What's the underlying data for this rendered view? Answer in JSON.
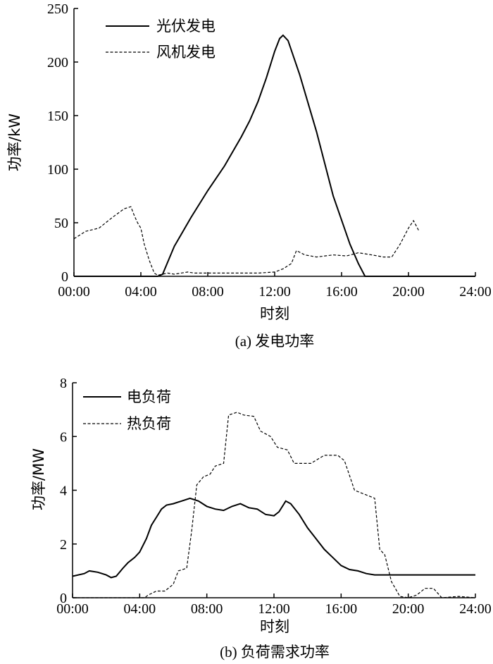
{
  "chart_data": [
    {
      "type": "line",
      "caption": "(a) 发电功率",
      "xlabel": "时刻",
      "ylabel": "功率/kW",
      "xlim": [
        0,
        24
      ],
      "ylim": [
        0,
        250
      ],
      "xticks": [
        "00:00",
        "04:00",
        "08:00",
        "12:00",
        "16:00",
        "20:00",
        "24:00"
      ],
      "yticks": [
        "0",
        "50",
        "100",
        "150",
        "200",
        "250"
      ],
      "legend_position": "top-left",
      "series": [
        {
          "name": "光伏发电",
          "style": "solid",
          "x": [
            0,
            5.0,
            5.3,
            6.0,
            7.0,
            8.0,
            9.0,
            10.0,
            10.5,
            11.0,
            11.5,
            12.0,
            12.3,
            12.5,
            12.8,
            13.5,
            14.5,
            15.5,
            16.5,
            17.0,
            17.4,
            24.0
          ],
          "y": [
            0,
            0,
            2,
            28,
            55,
            80,
            103,
            130,
            145,
            163,
            185,
            210,
            222,
            225,
            220,
            188,
            135,
            75,
            30,
            12,
            0,
            0
          ]
        },
        {
          "name": "风机发电",
          "style": "dashed",
          "x": [
            0,
            0.7,
            1.5,
            2.3,
            3.0,
            3.4,
            3.6,
            3.8,
            4.0,
            4.2,
            4.5,
            4.8,
            5.0,
            5.3,
            5.6,
            6.0,
            6.8,
            7.2,
            8.0,
            9.0,
            10.0,
            11.0,
            12.0,
            12.5,
            13.0,
            13.3,
            13.8,
            14.5,
            15.5,
            16.3,
            17.0,
            17.8,
            18.5,
            19.0,
            19.5,
            20.0,
            20.3,
            20.6
          ],
          "y": [
            35,
            42,
            45,
            55,
            63,
            65,
            57,
            50,
            45,
            30,
            15,
            3,
            1,
            2,
            3,
            2,
            4,
            3,
            3,
            3,
            3,
            3,
            4,
            7,
            12,
            24,
            20,
            18,
            20,
            19,
            22,
            20,
            18,
            18,
            30,
            45,
            52,
            43
          ]
        }
      ]
    },
    {
      "type": "line",
      "caption": "(b) 负荷需求功率",
      "xlabel": "时刻",
      "ylabel": "功率/MW",
      "xlim": [
        0,
        24
      ],
      "ylim": [
        0,
        8
      ],
      "xticks": [
        "00:00",
        "04:00",
        "08:00",
        "12:00",
        "16:00",
        "20:00",
        "24:00"
      ],
      "yticks": [
        "0",
        "2",
        "4",
        "6",
        "8"
      ],
      "legend_position": "top-left",
      "series": [
        {
          "name": "电负荷",
          "style": "solid",
          "x": [
            0,
            0.7,
            1.0,
            1.5,
            2.0,
            2.3,
            2.6,
            3.0,
            3.3,
            3.7,
            4.0,
            4.4,
            4.7,
            5.0,
            5.3,
            5.6,
            6.0,
            6.5,
            7.0,
            7.5,
            8.0,
            8.5,
            9.0,
            9.5,
            10.0,
            10.5,
            11.0,
            11.5,
            12.0,
            12.3,
            12.7,
            13.0,
            13.5,
            14.0,
            14.5,
            15.0,
            15.5,
            16.0,
            16.5,
            17.0,
            17.5,
            18.0,
            24.0
          ],
          "y": [
            0.8,
            0.9,
            1.0,
            0.95,
            0.85,
            0.75,
            0.8,
            1.1,
            1.3,
            1.5,
            1.7,
            2.2,
            2.7,
            3.0,
            3.3,
            3.45,
            3.5,
            3.6,
            3.7,
            3.6,
            3.4,
            3.3,
            3.25,
            3.4,
            3.5,
            3.35,
            3.3,
            3.1,
            3.05,
            3.2,
            3.6,
            3.5,
            3.1,
            2.6,
            2.2,
            1.8,
            1.5,
            1.2,
            1.05,
            1.0,
            0.9,
            0.85,
            0.85
          ]
        },
        {
          "name": "热负荷",
          "style": "dashed",
          "x": [
            0,
            4.3,
            4.5,
            5.0,
            5.5,
            6.0,
            6.3,
            6.8,
            7.1,
            7.4,
            7.8,
            8.2,
            8.5,
            9.0,
            9.3,
            9.8,
            10.2,
            10.8,
            11.2,
            11.8,
            12.2,
            12.8,
            13.2,
            14.2,
            15.0,
            15.8,
            16.2,
            16.8,
            17.2,
            17.6,
            18.0,
            18.3,
            18.6,
            19.0,
            19.5,
            20.0,
            20.5,
            21.0,
            21.5,
            22.0,
            23.0,
            24.0
          ],
          "y": [
            0,
            0,
            0.1,
            0.25,
            0.25,
            0.5,
            1.0,
            1.1,
            2.5,
            4.2,
            4.5,
            4.6,
            4.9,
            5.0,
            6.8,
            6.9,
            6.8,
            6.75,
            6.2,
            6.0,
            5.6,
            5.5,
            5.0,
            5.0,
            5.3,
            5.3,
            5.1,
            4.0,
            3.9,
            3.8,
            3.7,
            1.8,
            1.6,
            0.6,
            0.05,
            0.0,
            0.1,
            0.35,
            0.35,
            0.0,
            0.05,
            0.0
          ]
        }
      ]
    }
  ]
}
